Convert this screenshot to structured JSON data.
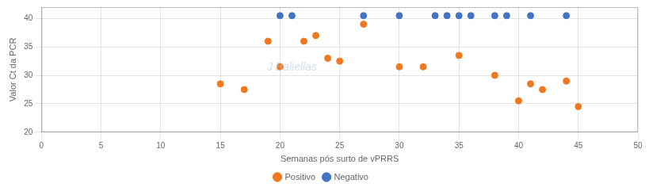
{
  "chart_data": {
    "type": "scatter",
    "x_label": "Semanas pós surto de vPRRS",
    "y_label": "Valor Ct da PCR",
    "series": [
      {
        "name": "Positivo",
        "color": "#F07820",
        "x": [
          15,
          17,
          19,
          20,
          22,
          23,
          24,
          25,
          27,
          30,
          32,
          35,
          38,
          40,
          41,
          42,
          44,
          45
        ],
        "values": [
          28.5,
          27.5,
          36,
          31.5,
          36,
          37,
          33,
          32.5,
          39,
          31.5,
          31.5,
          33.5,
          30,
          25.5,
          28.5,
          27.5,
          29,
          24.5
        ]
      },
      {
        "name": "Negativo",
        "color": "#4472C4",
        "x": [
          20,
          21,
          27,
          30,
          33,
          34,
          35,
          36,
          38,
          39,
          41,
          44
        ],
        "values": [
          40.5,
          40.5,
          40.5,
          40.5,
          40.5,
          40.5,
          40.5,
          40.5,
          40.5,
          40.5,
          40.5,
          40.5
        ]
      }
    ],
    "xlim": [
      0,
      50
    ],
    "ylim": [
      20,
      42
    ],
    "xticks": [
      0,
      5,
      10,
      15,
      20,
      25,
      30,
      35,
      40,
      45,
      50
    ],
    "yticks": [
      20,
      25,
      30,
      35,
      40
    ],
    "grid": true,
    "legend": "bottom",
    "annotations": [
      {
        "text": "J Baliellas"
      }
    ]
  }
}
